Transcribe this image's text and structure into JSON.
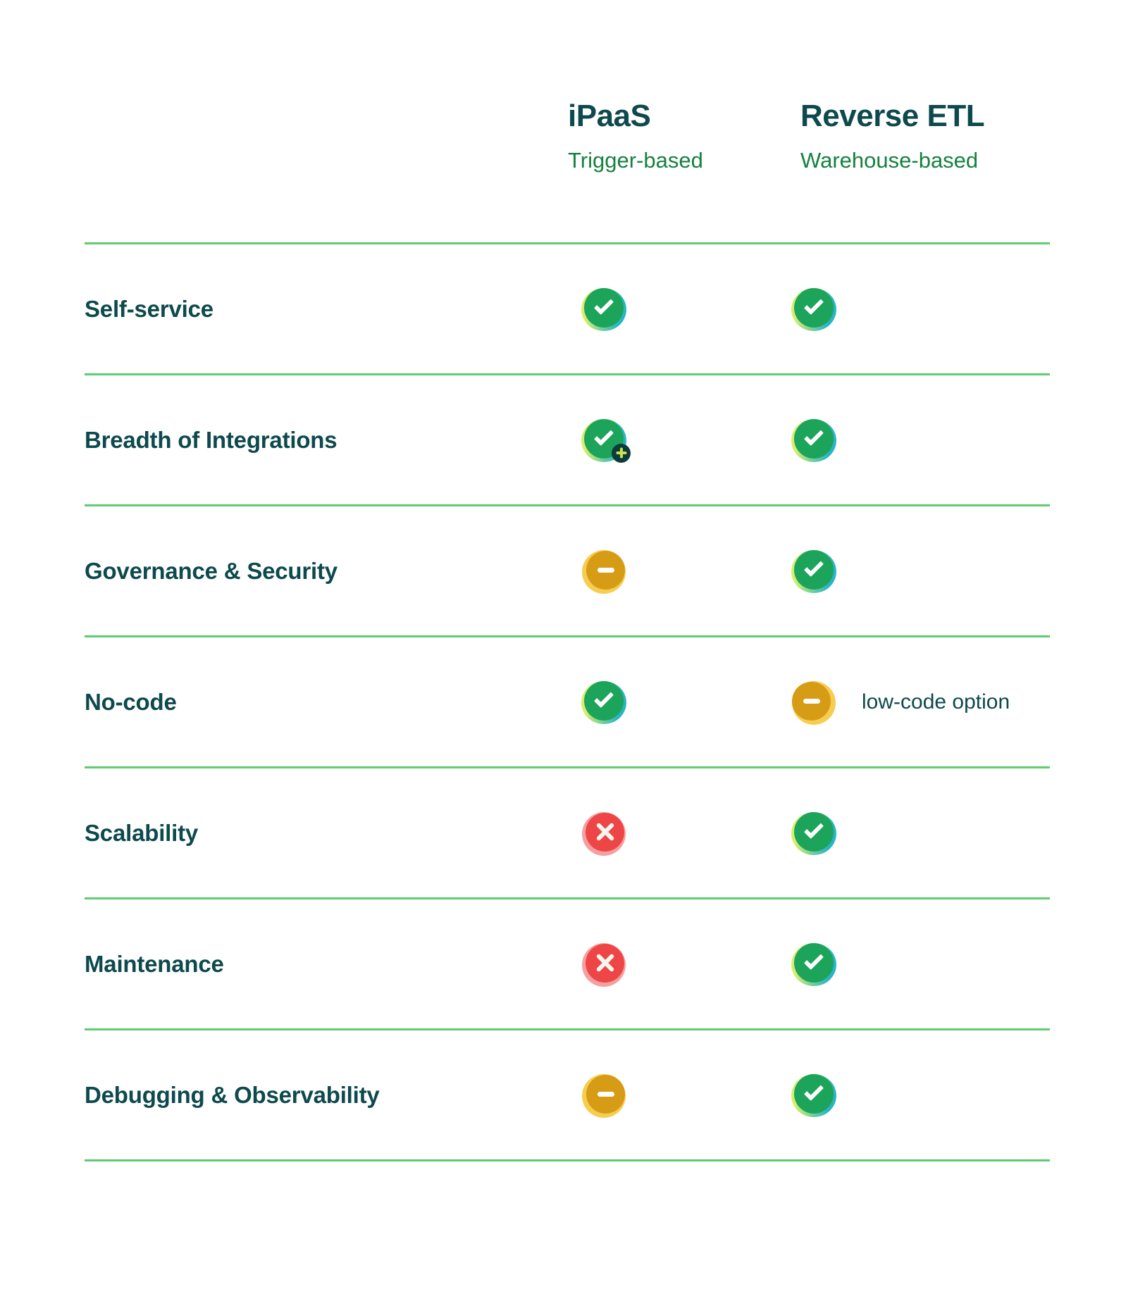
{
  "columns": [
    {
      "id": "ipaas",
      "title": "iPaaS",
      "subtitle": "Trigger-based"
    },
    {
      "id": "reverse-etl",
      "title": "Reverse ETL",
      "subtitle": "Warehouse-based"
    }
  ],
  "rows": [
    {
      "label": "Self-service",
      "cells": [
        "check",
        "check"
      ],
      "note": ""
    },
    {
      "label": "Breadth of Integrations",
      "cells": [
        "check-plus",
        "check"
      ],
      "note": ""
    },
    {
      "label": "Governance & Security",
      "cells": [
        "dash",
        "check"
      ],
      "note": ""
    },
    {
      "label": "No-code",
      "cells": [
        "check",
        "dash"
      ],
      "note": "low-code option"
    },
    {
      "label": "Scalability",
      "cells": [
        "cross",
        "check"
      ],
      "note": ""
    },
    {
      "label": "Maintenance",
      "cells": [
        "cross",
        "check"
      ],
      "note": ""
    },
    {
      "label": "Debugging & Observability",
      "cells": [
        "dash",
        "check"
      ],
      "note": ""
    }
  ],
  "icon_legend": {
    "check": "supported",
    "check-plus": "supported-with-more-integrations",
    "dash": "partial-support",
    "cross": "not-supported"
  },
  "colors": {
    "heading_text": "#0d494d",
    "subtitle_text": "#15813e",
    "divider": "#5ecd71",
    "check_green": "#1ca45a",
    "lime_accent": "#d9ee6b",
    "teal_accent": "#28b5c4",
    "dash_amber": "#d69c16",
    "dash_amber_light": "#f7cd50",
    "cross_red": "#ee4646",
    "cross_red_light": "#f5a0a0",
    "badge_dark_teal": "#0c3b3b",
    "badge_plus_lime": "#cbe44e"
  },
  "chart_data": {
    "type": "table",
    "title": "iPaaS vs Reverse ETL comparison",
    "row_labels": [
      "Self-service",
      "Breadth of Integrations",
      "Governance & Security",
      "No-code",
      "Scalability",
      "Maintenance",
      "Debugging & Observability"
    ],
    "columns": [
      {
        "name": "iPaaS (Trigger-based)",
        "values": [
          "yes",
          "yes-plus",
          "partial",
          "yes",
          "no",
          "no",
          "partial"
        ]
      },
      {
        "name": "Reverse ETL (Warehouse-based)",
        "values": [
          "yes",
          "yes",
          "yes",
          "partial (low-code option)",
          "yes",
          "yes",
          "yes"
        ]
      }
    ],
    "legend_position": "none",
    "grid": "horizontal-dividers"
  }
}
